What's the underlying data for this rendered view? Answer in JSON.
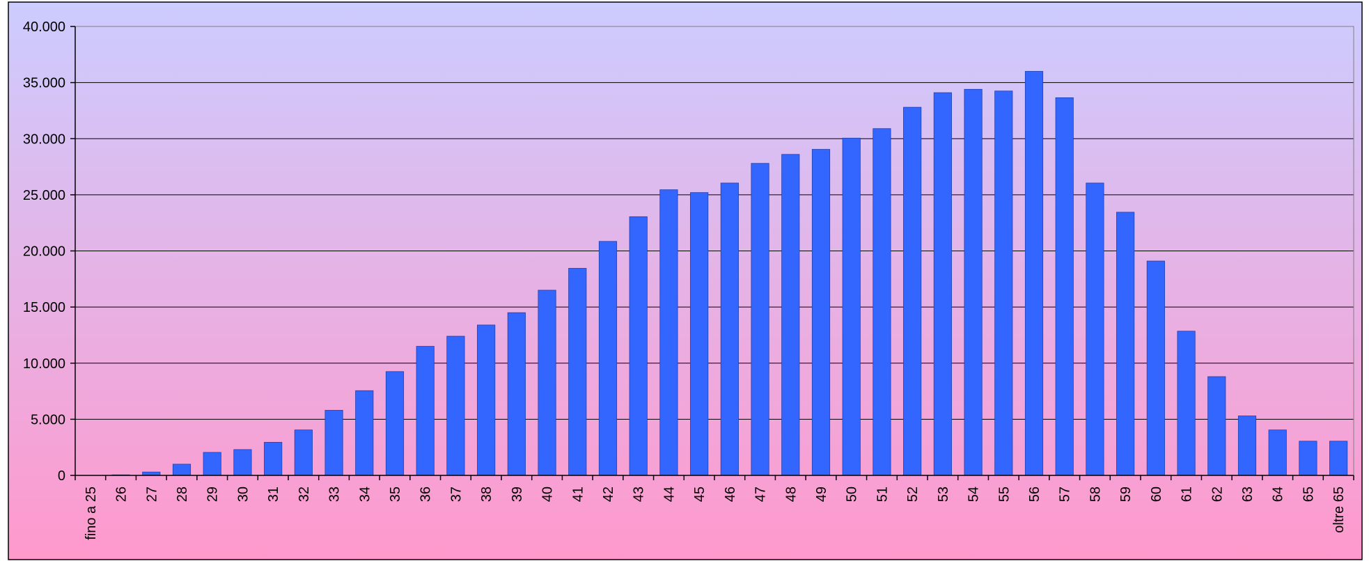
{
  "colors": {
    "bar": "#3366FF",
    "bar_stroke": "#1F3FAF",
    "background_top": "#CCCCFF",
    "background_bottom": "#FF99CC",
    "grid": "#000000",
    "axis": "#000000",
    "frame": "#000000"
  },
  "chart_data": {
    "type": "bar",
    "title": "",
    "xlabel": "",
    "ylabel": "",
    "ylim": [
      0,
      40000
    ],
    "y_ticks": [
      0,
      5000,
      10000,
      15000,
      20000,
      25000,
      30000,
      35000,
      40000
    ],
    "y_tick_labels": [
      "0",
      "5.000",
      "10.000",
      "15.000",
      "20.000",
      "25.000",
      "30.000",
      "35.000",
      "40.000"
    ],
    "grid": true,
    "legend": "none",
    "categories": [
      "fino a 25",
      "26",
      "27",
      "28",
      "29",
      "30",
      "31",
      "32",
      "33",
      "34",
      "35",
      "36",
      "37",
      "38",
      "39",
      "40",
      "41",
      "42",
      "43",
      "44",
      "45",
      "46",
      "47",
      "48",
      "49",
      "50",
      "51",
      "52",
      "53",
      "54",
      "55",
      "56",
      "57",
      "58",
      "59",
      "60",
      "61",
      "62",
      "63",
      "64",
      "65",
      "oltre 65"
    ],
    "values": [
      0,
      50,
      300,
      1000,
      2050,
      2300,
      2950,
      4050,
      5800,
      7550,
      9250,
      11500,
      12400,
      13400,
      14500,
      16500,
      18450,
      20850,
      23050,
      25450,
      25200,
      26050,
      27800,
      28600,
      29050,
      30050,
      30900,
      32800,
      34100,
      34400,
      34250,
      36000,
      33650,
      26050,
      23450,
      19100,
      12850,
      8800,
      5300,
      4050,
      3050,
      3050
    ]
  }
}
